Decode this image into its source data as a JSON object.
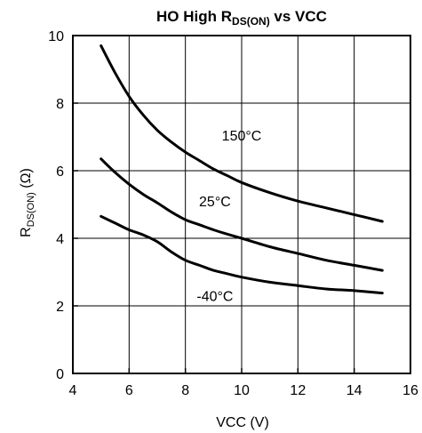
{
  "chart_data": {
    "type": "line",
    "title": {
      "part1": "HO High R",
      "subscript": "DS(ON)",
      "part2": " vs VCC"
    },
    "xlabel": "VCC (V)",
    "ylabel": {
      "main": "R",
      "subscript": "DS(ON)",
      "unit": " (Ω)"
    },
    "xlim": [
      4,
      16
    ],
    "ylim": [
      0,
      10
    ],
    "xticks": [
      4,
      6,
      8,
      10,
      12,
      14,
      16
    ],
    "yticks": [
      0,
      2,
      4,
      6,
      8,
      10
    ],
    "grid": true,
    "series": [
      {
        "name": "150°C",
        "x": [
          5,
          5.5,
          6,
          6.5,
          7,
          7.5,
          8,
          8.5,
          9,
          9.5,
          10,
          11,
          12,
          13,
          14,
          15
        ],
        "y": [
          9.7,
          8.9,
          8.2,
          7.65,
          7.2,
          6.85,
          6.55,
          6.3,
          6.05,
          5.85,
          5.65,
          5.35,
          5.1,
          4.9,
          4.7,
          4.5
        ]
      },
      {
        "name": "25°C",
        "x": [
          5,
          5.5,
          6,
          6.5,
          7,
          7.5,
          8,
          8.5,
          9,
          9.5,
          10,
          11,
          12,
          13,
          14,
          15
        ],
        "y": [
          6.35,
          5.95,
          5.6,
          5.3,
          5.05,
          4.78,
          4.55,
          4.4,
          4.25,
          4.12,
          4.0,
          3.75,
          3.55,
          3.35,
          3.2,
          3.05
        ]
      },
      {
        "name": "-40°C",
        "x": [
          5,
          5.5,
          6,
          6.5,
          7,
          7.5,
          8,
          8.5,
          9,
          9.5,
          10,
          11,
          12,
          13,
          14,
          15
        ],
        "y": [
          4.65,
          4.45,
          4.25,
          4.1,
          3.9,
          3.6,
          3.35,
          3.2,
          3.05,
          2.95,
          2.85,
          2.7,
          2.6,
          2.5,
          2.45,
          2.38
        ]
      }
    ],
    "curve_labels": [
      {
        "text": "150°C",
        "at": [
          10,
          6.9
        ]
      },
      {
        "text": "25°C",
        "at": [
          9.05,
          4.95
        ]
      },
      {
        "text": "-40°C",
        "at": [
          9.05,
          2.15
        ]
      }
    ]
  }
}
